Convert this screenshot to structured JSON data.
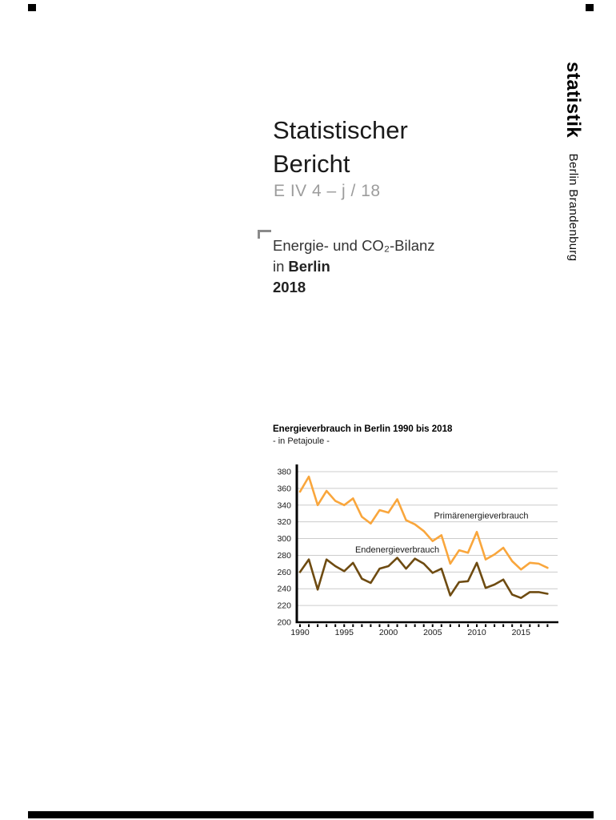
{
  "brand": {
    "name": "statistik",
    "region": "Berlin Brandenburg"
  },
  "title": {
    "line1": "Statistischer",
    "line2": "Bericht"
  },
  "report_code": "E IV 4 – j / 18",
  "subject": {
    "line1": "Energie- und CO₂-Bilanz",
    "line2_prefix": "in",
    "line2_bold": "Berlin",
    "line3": "2018"
  },
  "chart": {
    "title": "Energieverbrauch in Berlin 1990 bis 2018",
    "subtitle": "- in Petajoule -"
  },
  "chart_data": {
    "type": "line",
    "title": "Energieverbrauch in Berlin 1990 bis 2018",
    "unit_note": "- in Petajoule -",
    "ylim": [
      200,
      380
    ],
    "yticks": [
      200,
      220,
      240,
      260,
      280,
      300,
      320,
      340,
      360,
      380
    ],
    "xticks_labeled": [
      1990,
      1995,
      2000,
      2005,
      2010,
      2015
    ],
    "grid": "horizontal",
    "legend": "inline-annotations",
    "years": [
      1990,
      1991,
      1992,
      1993,
      1994,
      1995,
      1996,
      1997,
      1998,
      1999,
      2000,
      2001,
      2002,
      2003,
      2004,
      2005,
      2006,
      2007,
      2008,
      2009,
      2010,
      2011,
      2012,
      2013,
      2014,
      2015,
      2016,
      2017,
      2018
    ],
    "series": [
      {
        "name": "Primärenergieverbrauch",
        "color": "#F9A63C",
        "values": [
          356,
          374,
          340,
          357,
          345,
          340,
          348,
          326,
          318,
          334,
          331,
          347,
          322,
          317,
          309,
          297,
          304,
          270,
          286,
          283,
          308,
          275,
          281,
          289,
          273,
          263,
          271,
          270,
          265
        ]
      },
      {
        "name": "Endenergieverbrauch",
        "color": "#6E4B11",
        "values": [
          260,
          275,
          239,
          275,
          267,
          261,
          271,
          252,
          247,
          264,
          267,
          277,
          264,
          276,
          270,
          259,
          264,
          232,
          248,
          249,
          271,
          241,
          245,
          251,
          233,
          229,
          236,
          236,
          234
        ]
      }
    ],
    "annotations": [
      {
        "text": "Primärenergieverbrauch",
        "year": 2010.5,
        "value": 328
      },
      {
        "text": "Endenergieverbrauch",
        "year": 2001,
        "value": 287
      }
    ]
  }
}
